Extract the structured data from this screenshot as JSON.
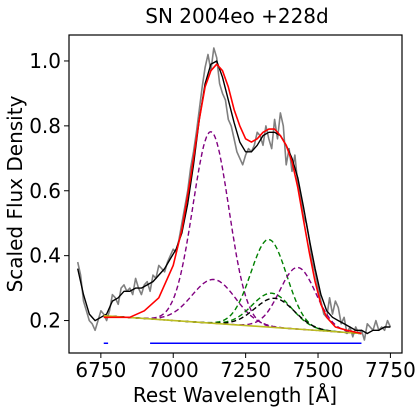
{
  "chart_data": {
    "type": "line",
    "title": "SN 2004eo  +228d",
    "xlabel": "Rest Wavelength [Å]",
    "ylabel": "Scaled Flux Density",
    "xlim": [
      6640,
      7790
    ],
    "ylim": [
      0.1,
      1.08
    ],
    "xticks": [
      6750,
      7000,
      7250,
      7500,
      7750
    ],
    "yticks": [
      0.2,
      0.4,
      0.6,
      0.8,
      1.0
    ],
    "xtick_labels": [
      "6750",
      "7000",
      "7250",
      "7500",
      "7750"
    ],
    "ytick_labels": [
      "0.2",
      "0.4",
      "0.6",
      "0.8",
      "1.0"
    ],
    "grid": false,
    "colors": {
      "raw": "#808080",
      "smoothed": "#000000",
      "fit": "#ff0000",
      "continuum": "#bcbd22",
      "component_purple": "#800080",
      "component_green": "#008000",
      "component_black": "#000000",
      "range_markers": "#0000ff"
    },
    "series": [
      {
        "key": "raw",
        "x": [
          6670,
          6680,
          6690,
          6700,
          6710,
          6720,
          6730,
          6740,
          6750,
          6760,
          6770,
          6780,
          6790,
          6800,
          6810,
          6820,
          6830,
          6840,
          6850,
          6860,
          6870,
          6880,
          6890,
          6900,
          6910,
          6920,
          6930,
          6940,
          6950,
          6960,
          6970,
          6980,
          6990,
          7000,
          7010,
          7020,
          7030,
          7040,
          7050,
          7060,
          7070,
          7080,
          7090,
          7100,
          7110,
          7120,
          7130,
          7140,
          7150,
          7160,
          7170,
          7180,
          7190,
          7200,
          7210,
          7220,
          7230,
          7240,
          7250,
          7260,
          7270,
          7280,
          7290,
          7300,
          7310,
          7320,
          7330,
          7340,
          7350,
          7360,
          7370,
          7380,
          7390,
          7400,
          7410,
          7420,
          7430,
          7440,
          7450,
          7460,
          7470,
          7480,
          7490,
          7500,
          7510,
          7520,
          7530,
          7540,
          7550,
          7560,
          7570,
          7580,
          7590,
          7600,
          7610,
          7620,
          7630,
          7640,
          7650,
          7660,
          7670,
          7680,
          7690,
          7700,
          7710,
          7720,
          7730,
          7740,
          7750
        ],
        "y": [
          0.38,
          0.34,
          0.26,
          0.23,
          0.2,
          0.19,
          0.17,
          0.2,
          0.23,
          0.22,
          0.2,
          0.23,
          0.28,
          0.27,
          0.25,
          0.3,
          0.31,
          0.29,
          0.3,
          0.28,
          0.33,
          0.3,
          0.28,
          0.31,
          0.32,
          0.29,
          0.34,
          0.33,
          0.37,
          0.36,
          0.35,
          0.38,
          0.4,
          0.42,
          0.41,
          0.45,
          0.5,
          0.55,
          0.6,
          0.67,
          0.72,
          0.78,
          0.85,
          0.92,
          0.98,
          1.02,
          0.97,
          1.04,
          1.01,
          0.93,
          0.9,
          0.88,
          0.82,
          0.8,
          0.76,
          0.72,
          0.7,
          0.68,
          0.71,
          0.73,
          0.72,
          0.74,
          0.78,
          0.77,
          0.74,
          0.8,
          0.76,
          0.73,
          0.82,
          0.76,
          0.84,
          0.8,
          0.68,
          0.73,
          0.66,
          0.71,
          0.62,
          0.58,
          0.52,
          0.5,
          0.45,
          0.38,
          0.35,
          0.3,
          0.26,
          0.22,
          0.21,
          0.27,
          0.22,
          0.26,
          0.24,
          0.19,
          0.21,
          0.16,
          0.18,
          0.15,
          0.18,
          0.16,
          0.17,
          0.14,
          0.19,
          0.18,
          0.17,
          0.2,
          0.17,
          0.18,
          0.17,
          0.2,
          0.18
        ]
      },
      {
        "key": "smoothed",
        "x": [
          6670,
          6690,
          6710,
          6730,
          6750,
          6770,
          6790,
          6810,
          6830,
          6850,
          6870,
          6890,
          6910,
          6930,
          6950,
          6970,
          6990,
          7010,
          7030,
          7050,
          7070,
          7090,
          7110,
          7130,
          7150,
          7170,
          7190,
          7210,
          7230,
          7250,
          7270,
          7290,
          7310,
          7330,
          7350,
          7370,
          7390,
          7410,
          7430,
          7450,
          7470,
          7490,
          7510,
          7530,
          7550,
          7570,
          7590,
          7610,
          7630,
          7650,
          7670,
          7690,
          7710,
          7730,
          7750
        ],
        "y": [
          0.36,
          0.28,
          0.22,
          0.2,
          0.21,
          0.22,
          0.26,
          0.27,
          0.29,
          0.29,
          0.3,
          0.3,
          0.31,
          0.32,
          0.34,
          0.36,
          0.39,
          0.42,
          0.47,
          0.56,
          0.68,
          0.82,
          0.93,
          0.99,
          1.0,
          0.95,
          0.88,
          0.81,
          0.75,
          0.72,
          0.72,
          0.74,
          0.77,
          0.78,
          0.78,
          0.77,
          0.74,
          0.7,
          0.64,
          0.55,
          0.45,
          0.36,
          0.28,
          0.23,
          0.21,
          0.2,
          0.19,
          0.18,
          0.17,
          0.17,
          0.16,
          0.17,
          0.17,
          0.18,
          0.18
        ]
      },
      {
        "key": "fit",
        "x": [
          6760,
          6800,
          6850,
          6900,
          6950,
          7000,
          7030,
          7060,
          7090,
          7110,
          7130,
          7150,
          7170,
          7190,
          7210,
          7230,
          7250,
          7270,
          7290,
          7310,
          7330,
          7350,
          7370,
          7390,
          7410,
          7430,
          7450,
          7470,
          7490,
          7510,
          7530,
          7560,
          7600,
          7650
        ],
        "y": [
          0.21,
          0.21,
          0.21,
          0.23,
          0.27,
          0.37,
          0.48,
          0.64,
          0.82,
          0.92,
          0.97,
          0.99,
          0.97,
          0.92,
          0.85,
          0.8,
          0.76,
          0.75,
          0.76,
          0.78,
          0.79,
          0.79,
          0.77,
          0.74,
          0.69,
          0.61,
          0.51,
          0.41,
          0.32,
          0.25,
          0.21,
          0.18,
          0.17,
          0.16
        ]
      },
      {
        "key": "continuum",
        "x": [
          6760,
          7650
        ],
        "y": [
          0.215,
          0.16
        ]
      }
    ],
    "components": [
      {
        "key": "purple-main",
        "color": "#800080",
        "center": 7130,
        "amplitude": 0.59,
        "sigma": 62,
        "xmin": 6760,
        "xmax": 7650
      },
      {
        "key": "purple-small",
        "color": "#800080",
        "center": 7140,
        "amplitude": 0.135,
        "sigma": 75,
        "xmin": 6760,
        "xmax": 7650
      },
      {
        "key": "green-main",
        "color": "#008000",
        "center": 7330,
        "amplitude": 0.27,
        "sigma": 62,
        "xmin": 6760,
        "xmax": 7650
      },
      {
        "key": "green-small",
        "color": "#008000",
        "center": 7340,
        "amplitude": 0.105,
        "sigma": 68,
        "xmin": 6760,
        "xmax": 7650
      },
      {
        "key": "purple-right",
        "color": "#800080",
        "center": 7430,
        "amplitude": 0.19,
        "sigma": 62,
        "xmin": 6760,
        "xmax": 7650
      },
      {
        "key": "black-component",
        "color": "#000000",
        "center": 7350,
        "amplitude": 0.09,
        "sigma": 68,
        "xmin": 6760,
        "xmax": 7650
      }
    ],
    "range_markers": [
      {
        "x1": 6760,
        "x2": 6775,
        "y": 0.13
      },
      {
        "x1": 6920,
        "x2": 7650,
        "y": 0.13
      }
    ]
  }
}
